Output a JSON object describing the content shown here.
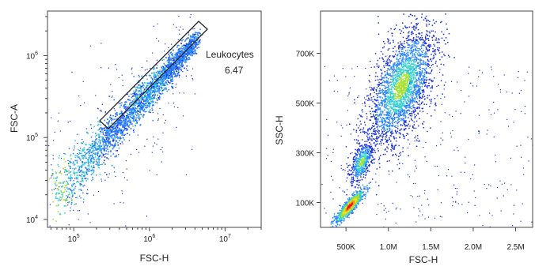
{
  "chart_data": [
    {
      "type": "scatter",
      "xlabel": "FSC-H",
      "ylabel": "FSC-A",
      "xscale": "log",
      "yscale": "log",
      "xlim": [
        45000,
        30000000
      ],
      "ylim": [
        8000,
        3500000
      ],
      "xticks": [
        {
          "base": "10",
          "exp": "5"
        },
        {
          "base": "10",
          "exp": "6"
        },
        {
          "base": "10",
          "exp": "7"
        }
      ],
      "yticks": [
        {
          "base": "10",
          "exp": "4"
        },
        {
          "base": "10",
          "exp": "5"
        },
        {
          "base": "10",
          "exp": "6"
        }
      ],
      "gate": {
        "name": "Leukocytes",
        "percent": "6.47"
      },
      "density_colors": [
        "#1a2fd6",
        "#2a86ff",
        "#35d0d0",
        "#a6e030",
        "#f0e020",
        "#ff8a10",
        "#e41a1c"
      ]
    },
    {
      "type": "scatter",
      "xlabel": "FSC-H",
      "ylabel": "SSC-H",
      "xlim": [
        200000,
        2700000
      ],
      "ylim": [
        0,
        870000
      ],
      "xtick_labels": [
        "500K",
        "1.0M",
        "1.5M",
        "2.0M",
        "2.5M"
      ],
      "xtick_values": [
        500000,
        1000000,
        1500000,
        2000000,
        2500000
      ],
      "ytick_labels": [
        "100K",
        "300K",
        "500K",
        "700K"
      ],
      "ytick_values": [
        100000,
        300000,
        500000,
        700000
      ],
      "populations": [
        {
          "x": 530000,
          "y": 90000,
          "density": "high"
        },
        {
          "x": 680000,
          "y": 270000,
          "density": "medium"
        },
        {
          "x": 1150000,
          "y": 560000,
          "density": "medium"
        }
      ],
      "density_colors": [
        "#1a2fd6",
        "#2a86ff",
        "#35d0d0",
        "#a6e030",
        "#f0e020",
        "#ff8a10",
        "#e41a1c"
      ]
    }
  ]
}
